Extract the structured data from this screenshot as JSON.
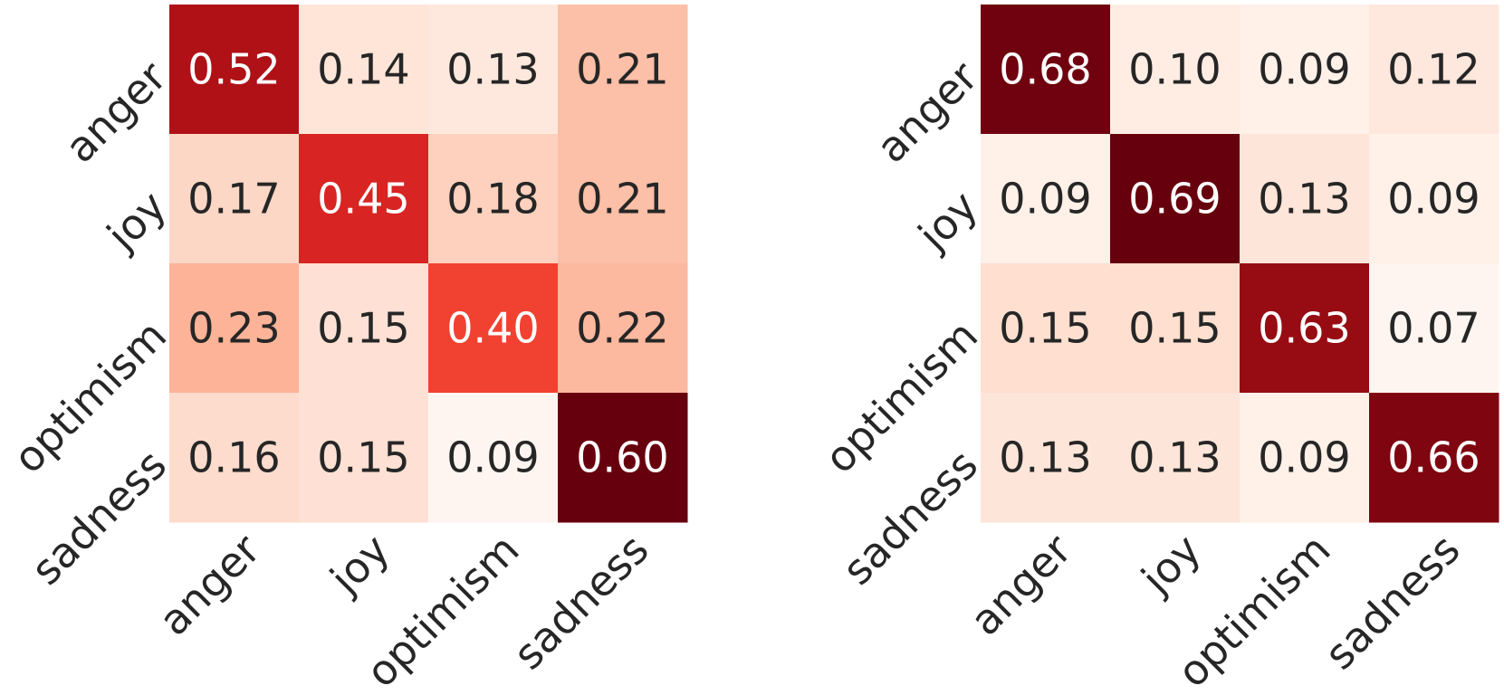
{
  "chart_data": [
    {
      "type": "heatmap",
      "x_categories": [
        "anger",
        "joy",
        "optimism",
        "sadness"
      ],
      "y_categories": [
        "anger",
        "joy",
        "optimism",
        "sadness"
      ],
      "values": [
        [
          0.52,
          0.14,
          0.13,
          0.21
        ],
        [
          0.17,
          0.45,
          0.18,
          0.21
        ],
        [
          0.23,
          0.15,
          0.4,
          0.22
        ],
        [
          0.16,
          0.15,
          0.09,
          0.6
        ]
      ],
      "colormap": "Reds",
      "value_format": "0.00",
      "title": "",
      "xlabel": "",
      "ylabel": ""
    },
    {
      "type": "heatmap",
      "x_categories": [
        "anger",
        "joy",
        "optimism",
        "sadness"
      ],
      "y_categories": [
        "anger",
        "joy",
        "optimism",
        "sadness"
      ],
      "values": [
        [
          0.68,
          0.1,
          0.09,
          0.12
        ],
        [
          0.09,
          0.69,
          0.13,
          0.09
        ],
        [
          0.15,
          0.15,
          0.63,
          0.07
        ],
        [
          0.13,
          0.13,
          0.09,
          0.66
        ]
      ],
      "colormap": "Reds",
      "value_format": "0.00",
      "title": "",
      "xlabel": "",
      "ylabel": ""
    }
  ]
}
